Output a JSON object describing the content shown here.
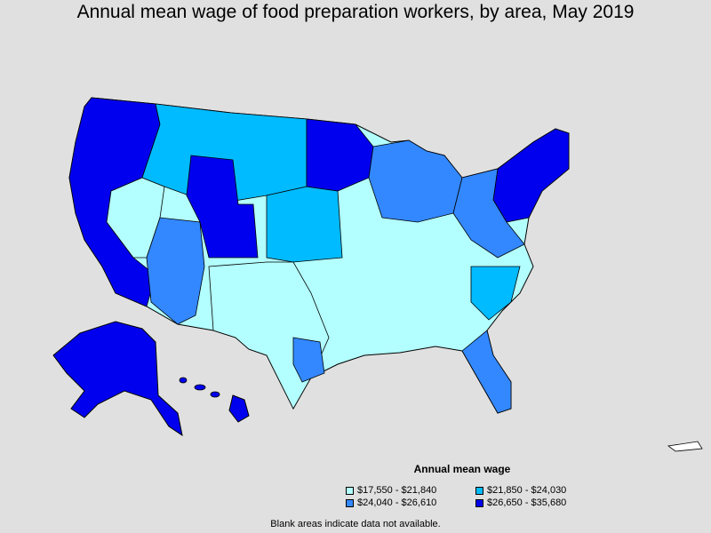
{
  "title": "Annual mean wage of food preparation workers, by area, May 2019",
  "legend": {
    "title": "Annual mean wage",
    "items": [
      {
        "label": "$17,550 - $21,840",
        "color": "#b3ffff"
      },
      {
        "label": "$21,850 - $24,030",
        "color": "#00bbff"
      },
      {
        "label": "$24,040 - $26,610",
        "color": "#3388ff"
      },
      {
        "label": "$26,650 - $35,680",
        "color": "#0000ee"
      }
    ]
  },
  "note": "Blank areas indicate data not available.",
  "colors": {
    "background": "#e0e0e0",
    "border": "#000000"
  }
}
